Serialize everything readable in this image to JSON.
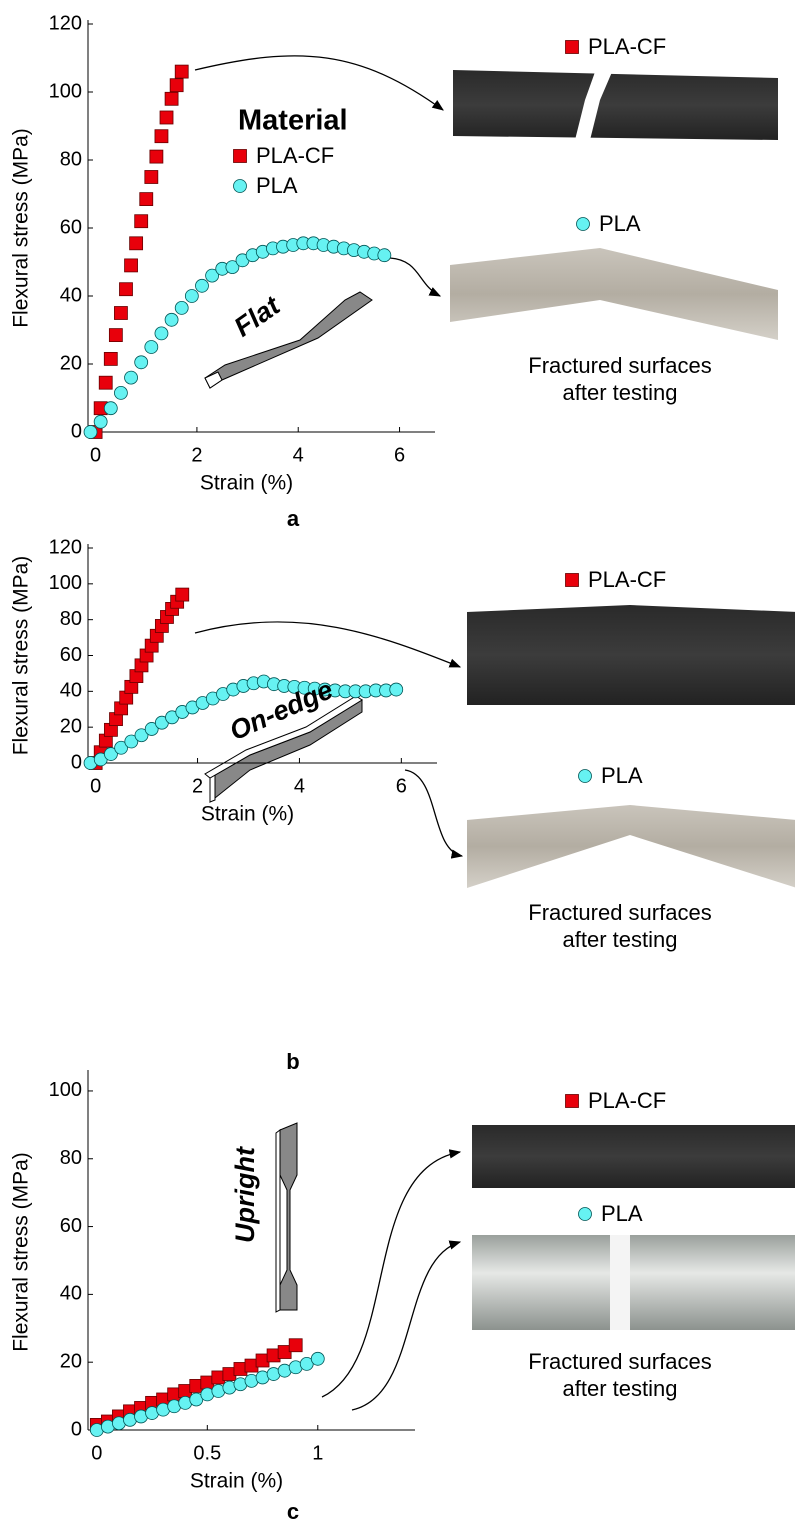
{
  "chart_data": [
    {
      "type": "scatter",
      "label": "a",
      "xlabel": "Strain (%)",
      "ylabel": "Flexural stress (MPa)",
      "xlim": [
        -0.15,
        6.7
      ],
      "ylim": [
        0,
        120
      ],
      "xticks": [
        0,
        2,
        4,
        6
      ],
      "yticks": [
        0,
        20,
        40,
        60,
        80,
        100,
        120
      ],
      "legend_title": "Material",
      "annotation": "Flat",
      "photo_captions": [
        "Fractured surfaces",
        "after testing"
      ],
      "series": [
        {
          "name": "PLA-CF",
          "color": "#e8000b",
          "marker": "square",
          "x": [
            0,
            0.1,
            0.2,
            0.3,
            0.4,
            0.5,
            0.6,
            0.7,
            0.8,
            0.9,
            1.0,
            1.1,
            1.2,
            1.3,
            1.4,
            1.5,
            1.6,
            1.7
          ],
          "values": [
            0,
            7,
            14.5,
            21.5,
            28.5,
            35,
            42,
            49,
            55.5,
            62,
            68.5,
            75,
            81,
            87,
            92.5,
            98,
            102,
            106
          ]
        },
        {
          "name": "PLA",
          "color": "#66f2f2",
          "marker": "circle",
          "x": [
            -0.1,
            0.1,
            0.3,
            0.5,
            0.7,
            0.9,
            1.1,
            1.3,
            1.5,
            1.7,
            1.9,
            2.1,
            2.3,
            2.5,
            2.7,
            2.9,
            3.1,
            3.3,
            3.5,
            3.7,
            3.9,
            4.1,
            4.3,
            4.5,
            4.7,
            4.9,
            5.1,
            5.3,
            5.5,
            5.7
          ],
          "values": [
            0,
            3,
            7,
            11.5,
            16,
            20.5,
            25,
            29,
            33,
            36.5,
            40,
            43,
            46,
            48,
            48.5,
            50.5,
            52,
            53,
            54,
            54.5,
            55,
            55.5,
            55.5,
            55,
            54.5,
            54,
            53.5,
            53,
            52.5,
            52
          ]
        }
      ]
    },
    {
      "type": "scatter",
      "label": "b",
      "xlabel": "Strain (%)",
      "ylabel": "Flexural stress (MPa)",
      "xlim": [
        -0.15,
        6.7
      ],
      "ylim": [
        0,
        120
      ],
      "xticks": [
        0,
        2,
        4,
        6
      ],
      "yticks": [
        0,
        20,
        40,
        60,
        80,
        100,
        120
      ],
      "annotation": "On-edge",
      "photo_captions": [
        "Fractured surfaces",
        "after testing"
      ],
      "series": [
        {
          "name": "PLA-CF",
          "color": "#e8000b",
          "marker": "square",
          "x": [
            0,
            0.1,
            0.2,
            0.3,
            0.4,
            0.5,
            0.6,
            0.7,
            0.8,
            0.9,
            1.0,
            1.1,
            1.2,
            1.3,
            1.4,
            1.5,
            1.6,
            1.7
          ],
          "values": [
            0,
            6,
            12.5,
            18.5,
            24.5,
            30.5,
            36.5,
            42.5,
            48.5,
            54.5,
            60,
            65.5,
            71,
            76.5,
            81.5,
            86,
            90,
            94
          ]
        },
        {
          "name": "PLA",
          "color": "#66f2f2",
          "marker": "circle",
          "x": [
            -0.1,
            0.1,
            0.3,
            0.5,
            0.7,
            0.9,
            1.1,
            1.3,
            1.5,
            1.7,
            1.9,
            2.1,
            2.3,
            2.5,
            2.7,
            2.9,
            3.1,
            3.3,
            3.5,
            3.7,
            3.9,
            4.1,
            4.3,
            4.5,
            4.7,
            4.9,
            5.1,
            5.3,
            5.5,
            5.7,
            5.9
          ],
          "values": [
            0,
            2,
            5,
            8.5,
            12,
            15.5,
            19,
            22.5,
            25.5,
            28.5,
            31,
            33.5,
            36,
            38.5,
            41,
            43,
            44.5,
            45.5,
            44,
            43,
            42.5,
            42,
            41.5,
            41,
            40.5,
            40,
            40,
            40,
            40.5,
            40.5,
            41
          ]
        }
      ]
    },
    {
      "type": "scatter",
      "label": "c",
      "xlabel": "Strain (%)",
      "ylabel": "Flexural stress (MPa)",
      "xlim": [
        -0.04,
        1.44
      ],
      "ylim": [
        0,
        105
      ],
      "xticks": [
        0,
        0.5,
        1
      ],
      "yticks": [
        0,
        20,
        40,
        60,
        80,
        100
      ],
      "annotation": "Upright",
      "photo_captions": [
        "Fractured surfaces",
        "after testing"
      ],
      "series": [
        {
          "name": "PLA-CF",
          "color": "#e8000b",
          "marker": "square",
          "x": [
            0,
            0.05,
            0.1,
            0.15,
            0.2,
            0.25,
            0.3,
            0.35,
            0.4,
            0.45,
            0.5,
            0.55,
            0.6,
            0.65,
            0.7,
            0.75,
            0.8,
            0.85,
            0.9
          ],
          "values": [
            1.5,
            2.5,
            4,
            5.5,
            6.5,
            8,
            9,
            10.5,
            11.5,
            13,
            14,
            15.5,
            16.5,
            18,
            19,
            20.5,
            22,
            23,
            25
          ]
        },
        {
          "name": "PLA",
          "color": "#66f2f2",
          "marker": "circle",
          "x": [
            0,
            0.05,
            0.1,
            0.15,
            0.2,
            0.25,
            0.3,
            0.35,
            0.4,
            0.45,
            0.5,
            0.55,
            0.6,
            0.65,
            0.7,
            0.75,
            0.8,
            0.85,
            0.9,
            0.95,
            1.0
          ],
          "values": [
            0,
            1,
            2,
            3,
            4,
            5,
            6,
            7,
            8,
            9,
            10.5,
            11.5,
            12.5,
            13.5,
            14.5,
            15.5,
            16.5,
            17.5,
            18.5,
            19.5,
            21
          ]
        }
      ]
    }
  ]
}
